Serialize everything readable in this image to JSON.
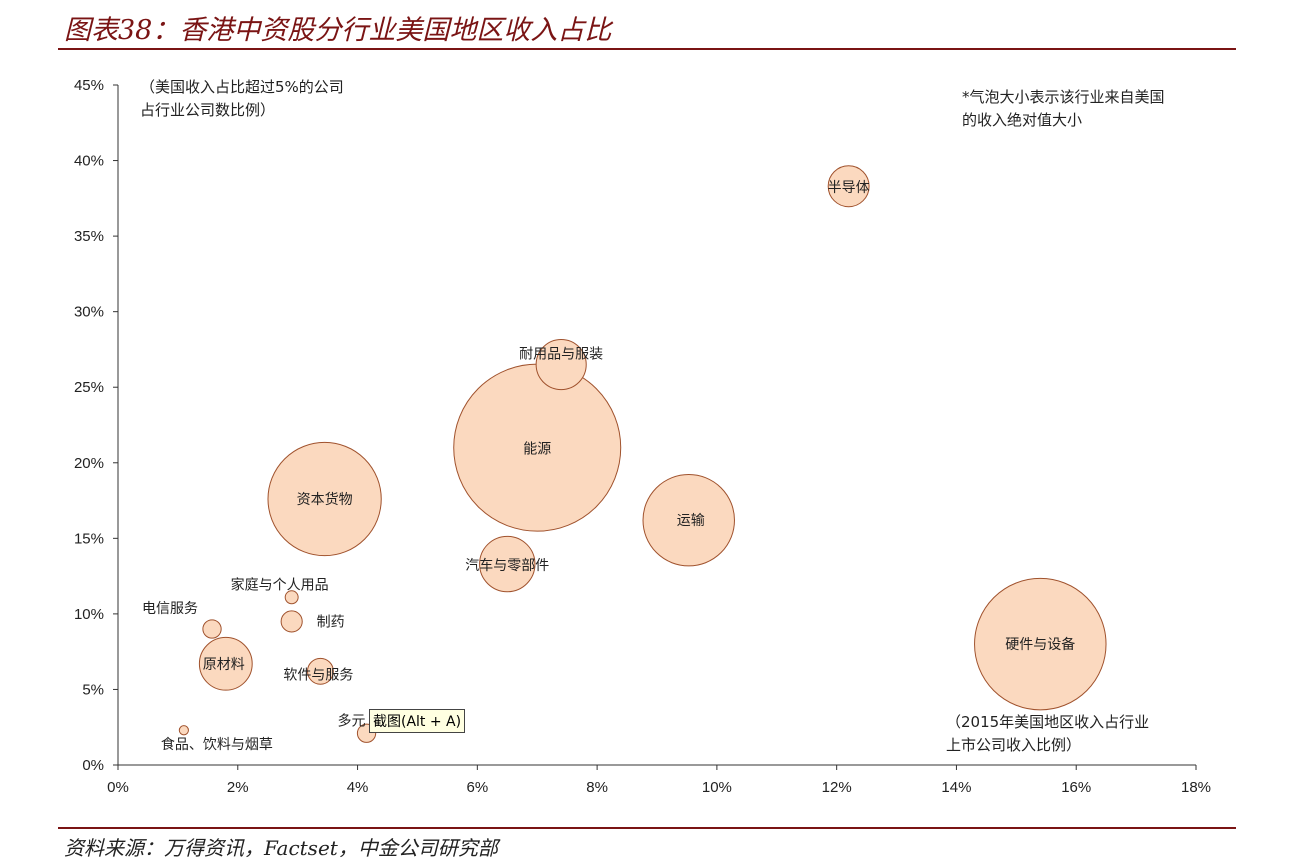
{
  "title": "图表38：香港中资股分行业美国地区收入占比",
  "source": "资料来源：万得资讯，Factset，中金公司研究部",
  "tooltip": "截图(Alt + A)",
  "colors": {
    "bubble_fill": "#fbd9bf",
    "bubble_stroke": "#a0522d",
    "rule": "#7a1414"
  },
  "chart_data": {
    "type": "scatter",
    "title": "图表38：香港中资股分行业美国地区收入占比",
    "y_note": [
      "（美国收入占比超过5%的公司",
      "占行业公司数比例）"
    ],
    "x_note": [
      "（2015年美国地区收入占行业",
      "上市公司收入比例）"
    ],
    "size_note": [
      "*气泡大小表示该行业来自美国",
      "的收入绝对值大小"
    ],
    "xlim": [
      0,
      0.18
    ],
    "ylim": [
      0,
      0.45
    ],
    "x_ticks": [
      0,
      0.02,
      0.04,
      0.06,
      0.08,
      0.1,
      0.12,
      0.14,
      0.16,
      0.18
    ],
    "x_tick_labels": [
      "0%",
      "2%",
      "4%",
      "6%",
      "8%",
      "10%",
      "12%",
      "14%",
      "16%",
      "18%"
    ],
    "y_ticks": [
      0,
      0.05,
      0.1,
      0.15,
      0.2,
      0.25,
      0.3,
      0.35,
      0.4,
      0.45
    ],
    "y_tick_labels": [
      "0%",
      "5%",
      "10%",
      "15%",
      "20%",
      "25%",
      "30%",
      "35%",
      "40%",
      "45%"
    ],
    "grid": false,
    "points": [
      {
        "label": "半导体",
        "x": 0.122,
        "y": 0.383,
        "size": 3
      },
      {
        "label": "耐用品与服装",
        "x": 0.074,
        "y": 0.265,
        "size": 4.5
      },
      {
        "label": "能源",
        "x": 0.07,
        "y": 0.21,
        "size": 50
      },
      {
        "label": "资本货物",
        "x": 0.0345,
        "y": 0.176,
        "size": 23
      },
      {
        "label": "运输",
        "x": 0.0953,
        "y": 0.162,
        "size": 15
      },
      {
        "label": "汽车与零部件",
        "x": 0.065,
        "y": 0.133,
        "size": 5.5
      },
      {
        "label": "家庭与个人用品",
        "x": 0.029,
        "y": 0.111,
        "size": 0.3
      },
      {
        "label": "电信服务",
        "x": 0.0157,
        "y": 0.09,
        "size": 0.6
      },
      {
        "label": "制药",
        "x": 0.029,
        "y": 0.095,
        "size": 0.8
      },
      {
        "label": "原材料",
        "x": 0.018,
        "y": 0.067,
        "size": 5
      },
      {
        "label": "软件与服务",
        "x": 0.0338,
        "y": 0.062,
        "size": 1.2
      },
      {
        "label": "多元",
        "x": 0.0415,
        "y": 0.021,
        "size": 0.6
      },
      {
        "label": "食品、饮料与烟草",
        "x": 0.011,
        "y": 0.023,
        "size": 0.15
      },
      {
        "label": "硬件与设备",
        "x": 0.154,
        "y": 0.08,
        "size": 31
      }
    ]
  }
}
